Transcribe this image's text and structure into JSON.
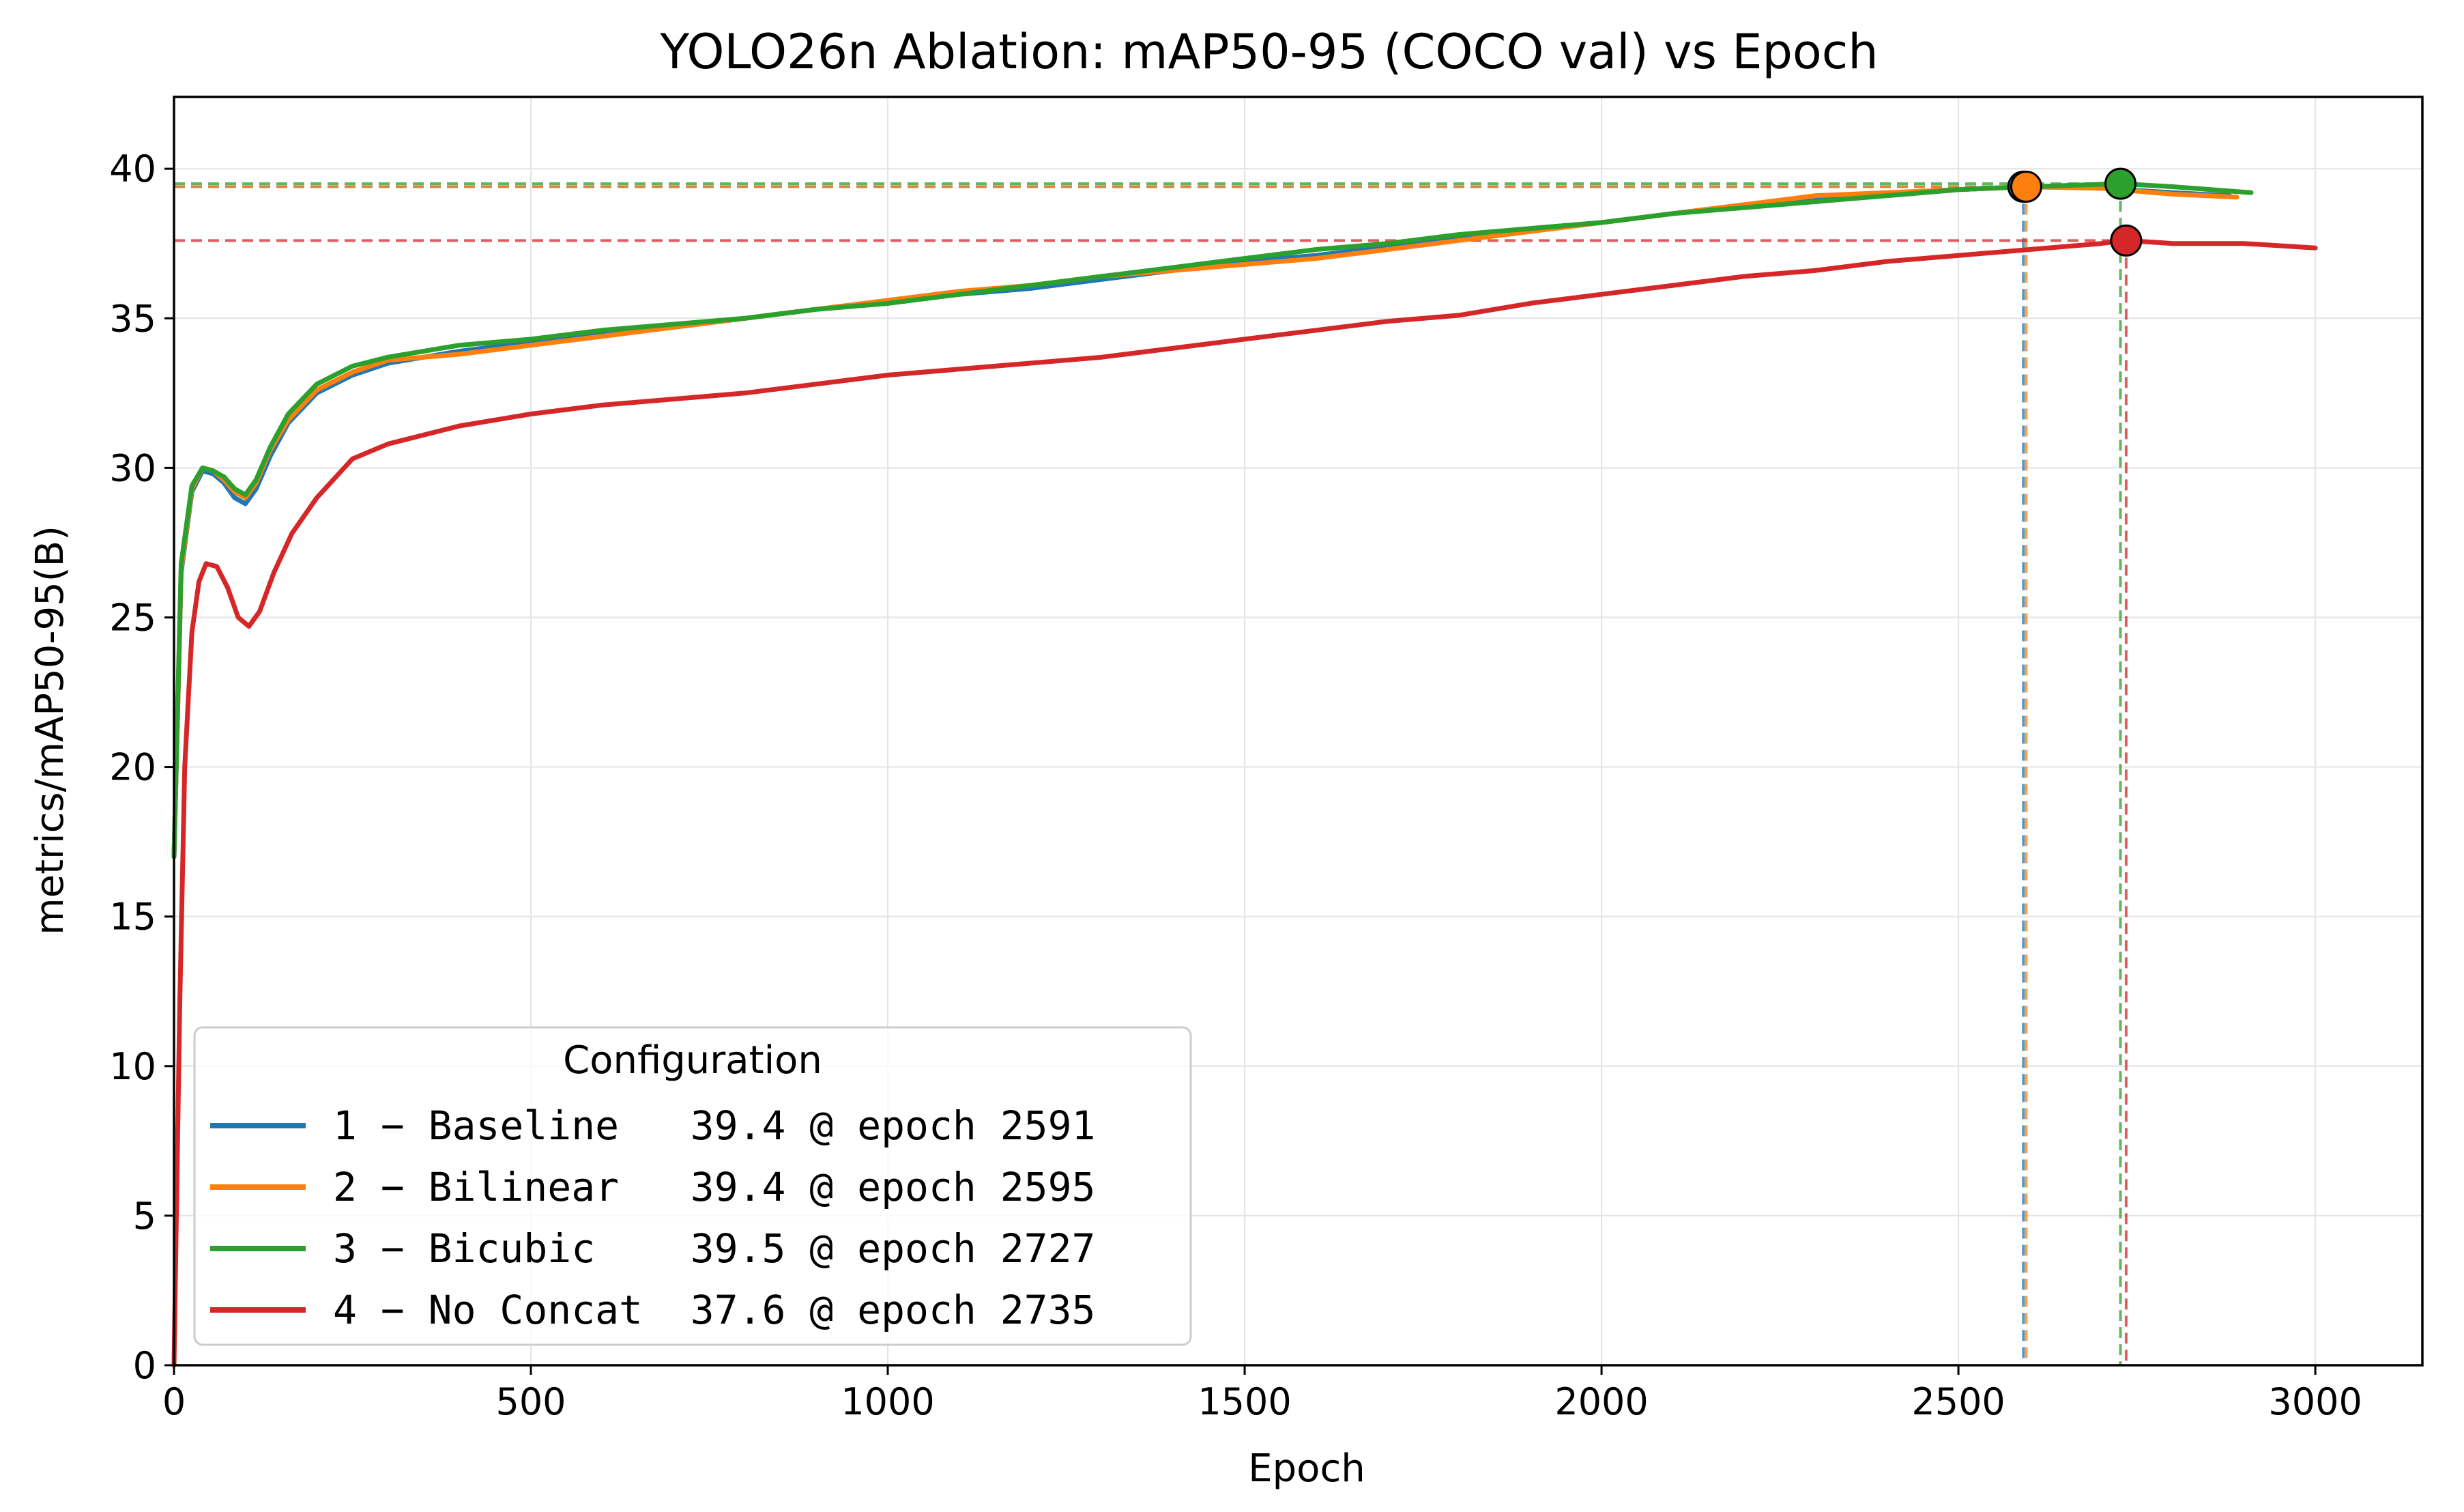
{
  "chart_data": {
    "type": "line",
    "title": "YOLO26n Ablation: mAP50-95 (COCO val) vs Epoch",
    "xlabel": "Epoch",
    "ylabel": "metrics/mAP50-95(B)",
    "xlim": [
      0,
      3150
    ],
    "ylim": [
      0,
      42.4
    ],
    "x_ticks": [
      0,
      500,
      1000,
      1500,
      2000,
      2500,
      3000
    ],
    "y_ticks": [
      0,
      5,
      10,
      15,
      20,
      25,
      30,
      35,
      40
    ],
    "grid": true,
    "legend": {
      "title": "Configuration",
      "placement": "lower-left",
      "entries": [
        "1 − Baseline   39.4 @ epoch 2591",
        "2 − Bilinear   39.4 @ epoch 2595",
        "3 − Bicubic    39.5 @ epoch 2727",
        "4 − No Concat  37.6 @ epoch 2735"
      ]
    },
    "series": [
      {
        "name": "1 − Baseline",
        "color": "#1f77b4",
        "best": {
          "epoch": 2591,
          "value": 39.4
        },
        "x": [
          0,
          10,
          25,
          40,
          55,
          70,
          85,
          100,
          115,
          135,
          160,
          200,
          250,
          300,
          400,
          500,
          600,
          700,
          800,
          900,
          1000,
          1100,
          1200,
          1300,
          1400,
          1500,
          1600,
          1700,
          1800,
          1900,
          2000,
          2100,
          2200,
          2300,
          2400,
          2500,
          2591,
          2700,
          2800,
          2880
        ],
        "y": [
          17.0,
          26.5,
          29.2,
          29.9,
          29.8,
          29.5,
          29.0,
          28.8,
          29.3,
          30.4,
          31.5,
          32.5,
          33.1,
          33.5,
          33.9,
          34.2,
          34.5,
          34.7,
          35.0,
          35.3,
          35.5,
          35.8,
          36.0,
          36.3,
          36.6,
          36.9,
          37.1,
          37.4,
          37.7,
          38.0,
          38.2,
          38.5,
          38.8,
          39.0,
          39.1,
          39.3,
          39.4,
          39.35,
          39.2,
          39.1
        ]
      },
      {
        "name": "2 − Bilinear",
        "color": "#ff7f0e",
        "best": {
          "epoch": 2595,
          "value": 39.4
        },
        "x": [
          0,
          10,
          25,
          40,
          55,
          70,
          85,
          100,
          115,
          135,
          160,
          200,
          250,
          300,
          400,
          500,
          600,
          700,
          800,
          900,
          1000,
          1100,
          1200,
          1300,
          1400,
          1500,
          1600,
          1700,
          1800,
          1900,
          2000,
          2100,
          2200,
          2300,
          2400,
          2500,
          2595,
          2700,
          2800,
          2890
        ],
        "y": [
          17.0,
          26.6,
          29.3,
          30.0,
          29.9,
          29.6,
          29.2,
          29.0,
          29.5,
          30.6,
          31.6,
          32.6,
          33.2,
          33.6,
          33.8,
          34.1,
          34.4,
          34.7,
          35.0,
          35.3,
          35.6,
          35.9,
          36.1,
          36.4,
          36.6,
          36.8,
          37.0,
          37.3,
          37.6,
          37.9,
          38.2,
          38.5,
          38.8,
          39.1,
          39.2,
          39.3,
          39.4,
          39.35,
          39.15,
          39.05
        ]
      },
      {
        "name": "3 − Bicubic",
        "color": "#2ca02c",
        "best": {
          "epoch": 2727,
          "value": 39.5
        },
        "x": [
          0,
          10,
          25,
          40,
          55,
          70,
          85,
          100,
          115,
          135,
          160,
          200,
          250,
          300,
          400,
          500,
          600,
          700,
          800,
          900,
          1000,
          1100,
          1200,
          1300,
          1400,
          1500,
          1600,
          1700,
          1800,
          1900,
          2000,
          2100,
          2200,
          2300,
          2400,
          2500,
          2600,
          2727,
          2800,
          2910
        ],
        "y": [
          17.0,
          26.8,
          29.4,
          30.0,
          29.9,
          29.7,
          29.3,
          29.1,
          29.6,
          30.7,
          31.8,
          32.8,
          33.4,
          33.7,
          34.1,
          34.3,
          34.6,
          34.8,
          35.0,
          35.3,
          35.5,
          35.8,
          36.1,
          36.4,
          36.7,
          37.0,
          37.3,
          37.5,
          37.8,
          38.0,
          38.2,
          38.5,
          38.7,
          38.9,
          39.1,
          39.3,
          39.4,
          39.5,
          39.4,
          39.2
        ]
      },
      {
        "name": "4 − No Concat",
        "color": "#d62728",
        "best": {
          "epoch": 2735,
          "value": 37.6
        },
        "x": [
          0,
          8,
          15,
          25,
          35,
          45,
          60,
          75,
          90,
          105,
          120,
          140,
          165,
          200,
          250,
          300,
          400,
          500,
          600,
          700,
          800,
          900,
          1000,
          1100,
          1200,
          1300,
          1400,
          1500,
          1600,
          1700,
          1800,
          1900,
          2000,
          2100,
          2200,
          2300,
          2400,
          2500,
          2600,
          2700,
          2735,
          2800,
          2900,
          3000
        ],
        "y": [
          0.0,
          12.0,
          20.0,
          24.5,
          26.2,
          26.8,
          26.7,
          26.0,
          25.0,
          24.7,
          25.2,
          26.5,
          27.8,
          29.0,
          30.3,
          30.8,
          31.4,
          31.8,
          32.1,
          32.3,
          32.5,
          32.8,
          33.1,
          33.3,
          33.5,
          33.7,
          34.0,
          34.3,
          34.6,
          34.9,
          35.1,
          35.5,
          35.8,
          36.1,
          36.4,
          36.6,
          36.9,
          37.1,
          37.3,
          37.5,
          37.6,
          37.5,
          37.5,
          37.35
        ]
      }
    ]
  }
}
